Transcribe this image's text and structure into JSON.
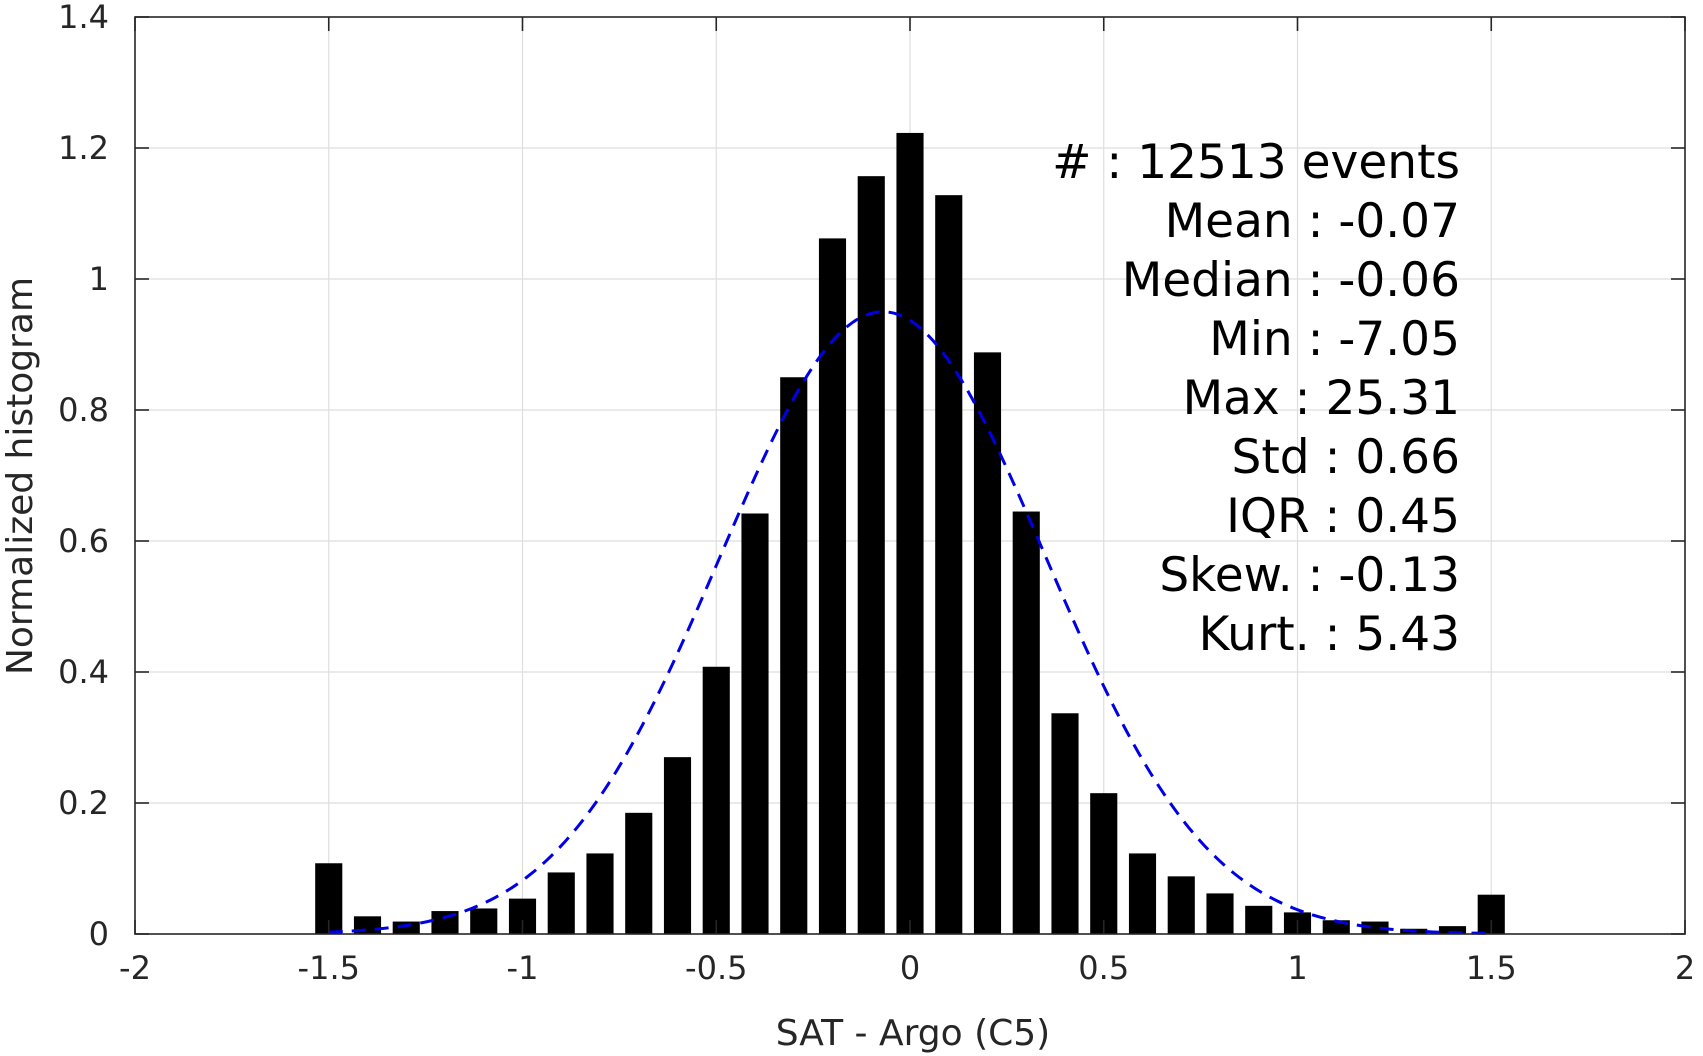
{
  "chart_data": {
    "type": "bar",
    "xlabel": "SAT - Argo (C5)",
    "ylabel": "Normalized histogram",
    "xlim": [
      -2,
      2
    ],
    "ylim": [
      0,
      1.4
    ],
    "xticks": [
      "-2",
      "-1.5",
      "-1",
      "-0.5",
      "0",
      "0.5",
      "1",
      "1.5",
      "2"
    ],
    "yticks": [
      "0",
      "0.2",
      "0.4",
      "0.6",
      "0.8",
      "1",
      "1.2",
      "1.4"
    ],
    "grid": true,
    "bar_width": 0.07,
    "bar_color": "#000000",
    "x": [
      -1.5,
      -1.4,
      -1.3,
      -1.2,
      -1.1,
      -1.0,
      -0.9,
      -0.8,
      -0.7,
      -0.6,
      -0.5,
      -0.4,
      -0.3,
      -0.2,
      -0.1,
      0.0,
      0.1,
      0.2,
      0.3,
      0.4,
      0.5,
      0.6,
      0.7,
      0.8,
      0.9,
      1.0,
      1.1,
      1.2,
      1.3,
      1.4,
      1.5
    ],
    "values": [
      0.108,
      0.027,
      0.019,
      0.035,
      0.039,
      0.054,
      0.094,
      0.123,
      0.185,
      0.27,
      0.408,
      0.642,
      0.85,
      1.062,
      1.157,
      1.223,
      1.128,
      0.888,
      0.645,
      0.337,
      0.215,
      0.123,
      0.088,
      0.062,
      0.043,
      0.033,
      0.021,
      0.019,
      0.008,
      0.012,
      0.06
    ],
    "fit_curve": {
      "type": "gaussian",
      "mean": -0.07,
      "std": 0.42,
      "peak": 0.95,
      "xrange": [
        -1.5,
        1.5
      ],
      "color": "#0000e6",
      "style": "dashed"
    },
    "stats": [
      {
        "label": "#  : 12513 events"
      },
      {
        "label": "Mean : -0.07"
      },
      {
        "label": "Median : -0.06"
      },
      {
        "label": "Min : -7.05"
      },
      {
        "label": "Max : 25.31"
      },
      {
        "label": "Std : 0.66"
      },
      {
        "label": "IQR : 0.45"
      },
      {
        "label": "Skew. : -0.13"
      },
      {
        "label": "Kurt. : 5.43"
      }
    ]
  }
}
